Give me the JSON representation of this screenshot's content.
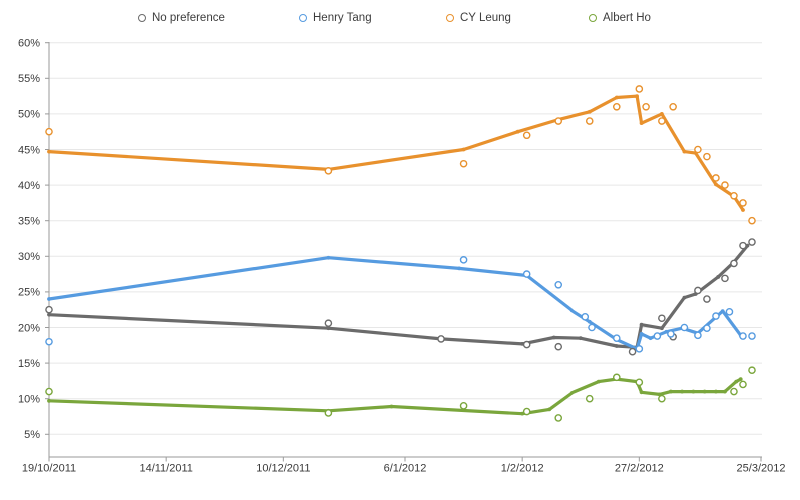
{
  "chart_data": {
    "type": "line",
    "title": "",
    "description": "Polling trend lines with individual poll result points (hollow circles), four candidates/options over time",
    "grid": true,
    "legend_position": "top",
    "x_axis": {
      "tick_labels": [
        "19/10/2011",
        "14/11/2011",
        "10/12/2011",
        "6/1/2012",
        "1/2/2012",
        "27/2/2012",
        "25/3/2012"
      ],
      "tick_days": [
        0,
        26,
        52,
        79,
        105,
        131,
        158
      ],
      "range_days": [
        0,
        158
      ]
    },
    "y_axis": {
      "tick_labels": [
        "60%",
        "55%",
        "50%",
        "45%",
        "40%",
        "35%",
        "30%",
        "25%",
        "20%",
        "15%",
        "10%",
        "5%"
      ],
      "min": 5,
      "max": 60,
      "step": 5,
      "unit": "%"
    },
    "legend_x_centers": [
      145,
      306,
      453,
      596
    ],
    "series": [
      {
        "name": "No preference",
        "color": "#6b6b6b",
        "trend": [
          [
            0,
            21.8
          ],
          [
            62,
            19.9
          ],
          [
            87,
            18.4
          ],
          [
            105,
            17.7
          ],
          [
            112,
            18.6
          ],
          [
            118,
            18.5
          ],
          [
            126,
            17.4
          ],
          [
            130.5,
            17.2
          ],
          [
            131.5,
            20.4
          ],
          [
            136,
            19.9
          ],
          [
            141,
            24.2
          ],
          [
            143.5,
            24.7
          ],
          [
            148.5,
            27.1
          ],
          [
            152,
            29.2
          ],
          [
            155,
            31.5
          ]
        ],
        "polls": [
          [
            0,
            22.5
          ],
          [
            62,
            20.6
          ],
          [
            87,
            18.4
          ],
          [
            106,
            17.6
          ],
          [
            113,
            17.3
          ],
          [
            129.5,
            16.6
          ],
          [
            136,
            21.3
          ],
          [
            138.5,
            18.7
          ],
          [
            144,
            25.2
          ],
          [
            146,
            24
          ],
          [
            150,
            26.9
          ],
          [
            152,
            29
          ],
          [
            154,
            31.5
          ],
          [
            156,
            32
          ]
        ]
      },
      {
        "name": "Henry Tang",
        "color": "#569be0",
        "trend": [
          [
            0,
            24
          ],
          [
            62,
            29.8
          ],
          [
            91,
            28.3
          ],
          [
            106,
            27.3
          ],
          [
            116,
            22.4
          ],
          [
            120,
            20.8
          ],
          [
            126,
            18.3
          ],
          [
            130.5,
            17
          ],
          [
            131.5,
            19.1
          ],
          [
            133.5,
            18.5
          ],
          [
            137,
            19.4
          ],
          [
            140.5,
            19.9
          ],
          [
            144,
            19.2
          ],
          [
            149.5,
            22.3
          ],
          [
            153.5,
            18.9
          ]
        ],
        "polls": [
          [
            0,
            18
          ],
          [
            92,
            29.5
          ],
          [
            106,
            27.5
          ],
          [
            113,
            26
          ],
          [
            119,
            21.5
          ],
          [
            120.5,
            20
          ],
          [
            126,
            18.5
          ],
          [
            131,
            17
          ],
          [
            135,
            18.8
          ],
          [
            138,
            19.1
          ],
          [
            141,
            20
          ],
          [
            144,
            18.9
          ],
          [
            146,
            19.9
          ],
          [
            148,
            21.6
          ],
          [
            151,
            22.2
          ],
          [
            154,
            18.8
          ],
          [
            156,
            18.8
          ]
        ]
      },
      {
        "name": "CY Leung",
        "color": "#e8912d",
        "trend": [
          [
            0,
            44.7
          ],
          [
            62,
            42.2
          ],
          [
            92,
            45
          ],
          [
            104,
            47.5
          ],
          [
            113,
            49.2
          ],
          [
            120,
            50.3
          ],
          [
            126,
            52.3
          ],
          [
            130.5,
            52.5
          ],
          [
            131.5,
            48.7
          ],
          [
            136,
            50
          ],
          [
            141,
            44.7
          ],
          [
            143.5,
            44.5
          ],
          [
            148,
            40.1
          ],
          [
            152,
            38.4
          ],
          [
            154,
            36.5
          ]
        ],
        "polls": [
          [
            0,
            47.5
          ],
          [
            62,
            42
          ],
          [
            92,
            43
          ],
          [
            106,
            47
          ],
          [
            113,
            49
          ],
          [
            120,
            49
          ],
          [
            126,
            51
          ],
          [
            131,
            53.5
          ],
          [
            132.5,
            51
          ],
          [
            136,
            49
          ],
          [
            138.5,
            51
          ],
          [
            144,
            45
          ],
          [
            146,
            44
          ],
          [
            148,
            41
          ],
          [
            150,
            40
          ],
          [
            152,
            38.5
          ],
          [
            154,
            37.5
          ],
          [
            156,
            35
          ]
        ]
      },
      {
        "name": "Albert Ho",
        "color": "#7aa63c",
        "trend": [
          [
            0,
            9.7
          ],
          [
            62,
            8.3
          ],
          [
            76,
            8.9
          ],
          [
            105,
            7.9
          ],
          [
            111,
            8.5
          ],
          [
            116,
            10.8
          ],
          [
            122,
            12.4
          ],
          [
            126,
            12.75
          ],
          [
            130.5,
            12.4
          ],
          [
            131.5,
            10.9
          ],
          [
            135.5,
            10.6
          ],
          [
            138,
            11
          ],
          [
            140.5,
            11
          ],
          [
            143,
            11
          ],
          [
            145.5,
            11
          ],
          [
            148,
            11
          ],
          [
            150,
            11
          ],
          [
            152.5,
            12.4
          ],
          [
            153.5,
            12.75
          ]
        ],
        "polls": [
          [
            0,
            11
          ],
          [
            62,
            8
          ],
          [
            92,
            9
          ],
          [
            106,
            8.2
          ],
          [
            113,
            7.3
          ],
          [
            120,
            10
          ],
          [
            126,
            13
          ],
          [
            131,
            12.3
          ],
          [
            136,
            10
          ],
          [
            152,
            11
          ],
          [
            154,
            12
          ],
          [
            156,
            14
          ]
        ]
      }
    ],
    "colors": {
      "gridline": "#e7e7e7",
      "axis": "#9a9a9a",
      "tick_label": "#3a3a3a"
    }
  }
}
